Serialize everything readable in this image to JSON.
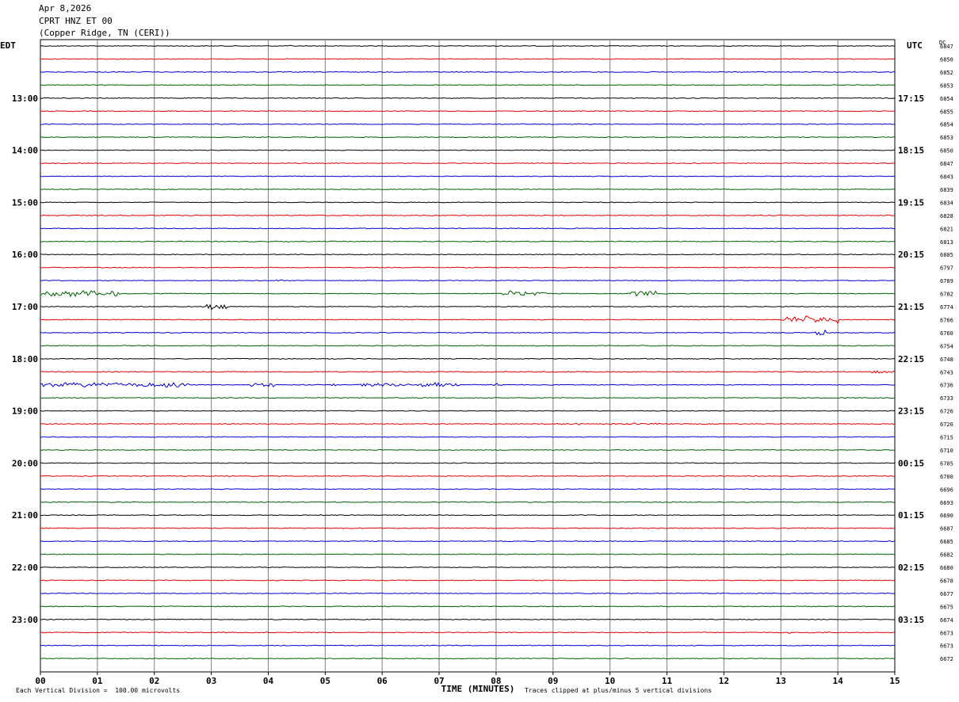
{
  "header": {
    "date": "Apr 8,2026",
    "station": "CPRT HNZ ET 00",
    "location": "(Copper Ridge, TN (CERI))"
  },
  "left_axis_title": "EDT",
  "right_axis_title": "UTC",
  "dc_title": "DC",
  "footer": {
    "scale_note": "Each Vertical Division =  100.00 microvolts",
    "clip_note": "Traces clipped at plus/minus 5 vertical divisions",
    "xlabel": "TIME (MINUTES)"
  },
  "colors": {
    "trace_cycle": [
      "#000000",
      "#e00000",
      "#0000d0",
      "#006000"
    ],
    "grid": "#808080"
  },
  "chart_data": {
    "type": "line",
    "xlabel": "TIME (MINUTES)",
    "x_ticks": [
      "00",
      "01",
      "02",
      "03",
      "04",
      "05",
      "06",
      "07",
      "08",
      "09",
      "10",
      "11",
      "12",
      "13",
      "14",
      "15"
    ],
    "xlim": [
      0,
      15
    ],
    "left_time_labels": [
      "13:00",
      "14:00",
      "15:00",
      "16:00",
      "17:00",
      "18:00",
      "19:00",
      "20:00",
      "21:00",
      "22:00",
      "23:00"
    ],
    "right_time_labels": [
      "17:15",
      "18:15",
      "19:15",
      "20:15",
      "21:15",
      "22:15",
      "23:15",
      "00:15",
      "01:15",
      "02:15",
      "03:15"
    ],
    "dc_offsets": [
      6847,
      6850,
      6852,
      6853,
      6854,
      6855,
      6854,
      6853,
      6850,
      6847,
      6843,
      6839,
      6834,
      6828,
      6821,
      6813,
      6805,
      6797,
      6789,
      6782,
      6774,
      6766,
      6760,
      6754,
      6748,
      6743,
      6736,
      6733,
      6726,
      6720,
      6715,
      6710,
      6705,
      6700,
      6696,
      6693,
      6690,
      6687,
      6685,
      6682,
      6680,
      6678,
      6677,
      6675,
      6674,
      6673,
      6673,
      6672
    ],
    "trace_count": 48,
    "events": [
      {
        "trace": 0,
        "start_min": 4.3,
        "end_min": 4.4,
        "amp": 1.6
      },
      {
        "trace": 19,
        "start_min": 0.0,
        "end_min": 1.4,
        "amp": 4.0
      },
      {
        "trace": 19,
        "start_min": 8.1,
        "end_min": 8.9,
        "amp": 4.0
      },
      {
        "trace": 19,
        "start_min": 10.3,
        "end_min": 10.8,
        "amp": 4.5
      },
      {
        "trace": 18,
        "start_min": 4.1,
        "end_min": 4.3,
        "amp": 1.4
      },
      {
        "trace": 20,
        "start_min": 2.9,
        "end_min": 3.3,
        "amp": 4.5
      },
      {
        "trace": 21,
        "start_min": 13.0,
        "end_min": 14.0,
        "amp": 5.0
      },
      {
        "trace": 22,
        "start_min": 13.6,
        "end_min": 13.8,
        "amp": 5.0
      },
      {
        "trace": 25,
        "start_min": 14.6,
        "end_min": 15.0,
        "amp": 2.0
      },
      {
        "trace": 26,
        "start_min": 0.0,
        "end_min": 2.6,
        "amp": 3.5
      },
      {
        "trace": 26,
        "start_min": 3.7,
        "end_min": 4.1,
        "amp": 3.0
      },
      {
        "trace": 26,
        "start_min": 5.1,
        "end_min": 5.2,
        "amp": 3.5
      },
      {
        "trace": 26,
        "start_min": 5.6,
        "end_min": 6.5,
        "amp": 3.0
      },
      {
        "trace": 26,
        "start_min": 6.6,
        "end_min": 7.4,
        "amp": 4.0
      },
      {
        "trace": 26,
        "start_min": 7.9,
        "end_min": 8.1,
        "amp": 2.5
      },
      {
        "trace": 29,
        "start_min": 9.0,
        "end_min": 9.5,
        "amp": 1.2
      },
      {
        "trace": 29,
        "start_min": 10.0,
        "end_min": 10.9,
        "amp": 1.2
      },
      {
        "trace": 36,
        "start_min": 4.9,
        "end_min": 5.0,
        "amp": 1.5
      },
      {
        "trace": 45,
        "start_min": 13.1,
        "end_min": 13.8,
        "amp": 1.2
      }
    ]
  }
}
